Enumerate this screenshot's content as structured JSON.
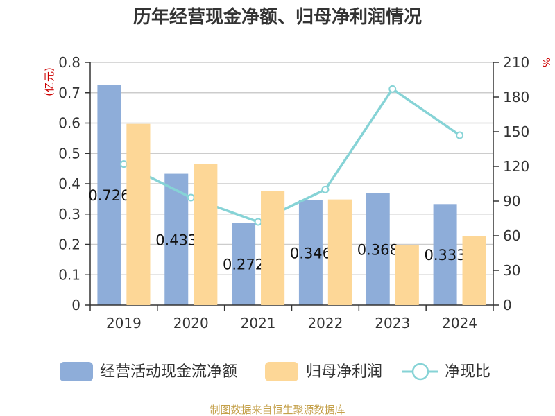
{
  "chart_data": {
    "type": "bar",
    "title": "历年经营现金净额、归母净利润情况",
    "categories": [
      "2019",
      "2020",
      "2021",
      "2022",
      "2023",
      "2024"
    ],
    "y_left": {
      "unit": "(亿元)",
      "ylim": [
        0,
        0.8
      ],
      "ticks": [
        "0",
        "0.1",
        "0.2",
        "0.3",
        "0.4",
        "0.5",
        "0.6",
        "0.7",
        "0.8"
      ]
    },
    "y_right": {
      "unit": "%",
      "ylim": [
        0,
        210
      ],
      "ticks": [
        "0",
        "30",
        "60",
        "90",
        "120",
        "150",
        "180",
        "210"
      ]
    },
    "series": [
      {
        "name": "经营活动现金流净额",
        "type": "bar",
        "axis": "left",
        "color": "#8eadd9",
        "values": [
          0.726,
          0.433,
          0.272,
          0.346,
          0.368,
          0.333
        ],
        "labels": [
          "0.726",
          "0.433",
          "0.272",
          "0.346",
          "0.368",
          "0.333"
        ]
      },
      {
        "name": "归母净利润",
        "type": "bar",
        "axis": "left",
        "color": "#fdd797",
        "values": [
          0.597,
          0.466,
          0.377,
          0.348,
          0.198,
          0.227
        ]
      },
      {
        "name": "净现比",
        "type": "line",
        "axis": "right",
        "color": "#86d3d6",
        "values": [
          122,
          93,
          72,
          100,
          187,
          147
        ]
      }
    ],
    "grid": true,
    "legend": "bottom"
  },
  "footer": {
    "source": "制图数据来自恒生聚源数据库"
  }
}
